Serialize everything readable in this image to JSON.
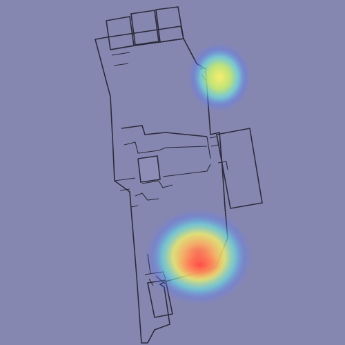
{
  "map": {
    "background_color": "#8687b0",
    "floor_color": "#a9aad6",
    "wall_color": "#2b2b38",
    "heatmap_colors": [
      "#3b6dff",
      "#5ff0ff",
      "#f5f565",
      "#ff5a4e"
    ]
  }
}
